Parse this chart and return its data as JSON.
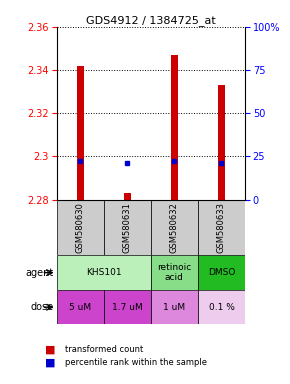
{
  "title": "GDS4912 / 1384725_at",
  "samples": [
    "GSM580630",
    "GSM580631",
    "GSM580632",
    "GSM580633"
  ],
  "red_values": [
    2.342,
    2.283,
    2.347,
    2.333
  ],
  "blue_values": [
    2.298,
    2.297,
    2.298,
    2.297
  ],
  "red_base": 2.28,
  "ylim": [
    2.28,
    2.36
  ],
  "yticks_left": [
    2.28,
    2.3,
    2.32,
    2.34,
    2.36
  ],
  "yticks_right": [
    0,
    25,
    50,
    75,
    100
  ],
  "y_right_labels": [
    "0",
    "25",
    "50",
    "75",
    "100%"
  ],
  "dose_labels": [
    "5 uM",
    "1.7 uM",
    "1 uM",
    "0.1 %"
  ],
  "sample_bg": "#cccccc",
  "bar_color": "#cc0000",
  "dot_color": "#0000cc",
  "agent_groups": [
    {
      "cols": [
        0,
        1
      ],
      "label": "KHS101",
      "color": "#bbf0bb"
    },
    {
      "cols": [
        2
      ],
      "label": "retinoic\nacid",
      "color": "#88dd88"
    },
    {
      "cols": [
        3
      ],
      "label": "DMSO",
      "color": "#22bb22"
    }
  ],
  "dose_colors": [
    "#cc44cc",
    "#cc44cc",
    "#dd88dd",
    "#eeccee"
  ]
}
